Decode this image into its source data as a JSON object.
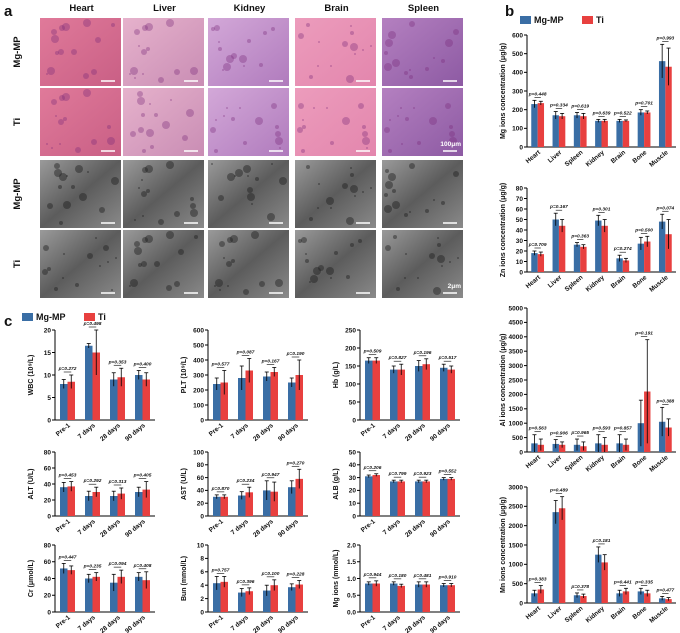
{
  "panels": {
    "a": {
      "label": "a",
      "columns": [
        "Heart",
        "Liver",
        "Kidney",
        "Brain",
        "Spleen"
      ],
      "rows": [
        "Mg-MP",
        "Ti",
        "Mg-MP",
        "Ti"
      ],
      "scale_bars": [
        "100μm",
        "2μm"
      ]
    },
    "b": {
      "label": "b"
    },
    "c": {
      "label": "c"
    }
  },
  "chart_data": [
    {
      "type": "bar",
      "y_label": "Mg ions concentration (μg/g)",
      "categories": [
        "Heart",
        "Liver",
        "Spleen",
        "Kidney",
        "Brain",
        "Bone",
        "Muscle"
      ],
      "ylim": [
        0,
        600
      ],
      "yticks": [
        0,
        100,
        200,
        300,
        400,
        500,
        600
      ],
      "series": [
        {
          "name": "Mg-MP",
          "color": "#3a6ea5",
          "values": [
            230,
            170,
            170,
            140,
            140,
            185,
            460
          ],
          "errors": [
            20,
            20,
            15,
            8,
            8,
            15,
            90
          ]
        },
        {
          "name": "Ti",
          "color": "#e8403f",
          "values": [
            235,
            165,
            165,
            140,
            140,
            185,
            430
          ],
          "errors": [
            10,
            15,
            15,
            8,
            5,
            8,
            100
          ]
        }
      ],
      "annotations": [
        "p=0.448",
        "p=0.334",
        "p=0.619",
        "p=0.639",
        "p=0.522",
        "p=0.701",
        "p=0.993"
      ]
    },
    {
      "type": "bar",
      "y_label": "Zn ions concentration (μg/g)",
      "categories": [
        "Heart",
        "Liver",
        "Spleen",
        "Kidney",
        "Brain",
        "Bone",
        "Muscle"
      ],
      "ylim": [
        0,
        80
      ],
      "yticks": [
        0,
        10,
        20,
        30,
        40,
        50,
        60,
        70,
        80
      ],
      "series": [
        {
          "color": "#3a6ea5",
          "values": [
            18,
            50,
            26,
            49,
            13,
            27,
            48
          ],
          "errors": [
            2,
            6,
            2,
            5,
            3,
            6,
            7
          ]
        },
        {
          "color": "#e8403f",
          "values": [
            17,
            44,
            24,
            44,
            11,
            29,
            36
          ],
          "errors": [
            2,
            6,
            2,
            6,
            2,
            5,
            14
          ]
        }
      ],
      "annotations": [
        "p=0.709",
        "p=0.167",
        "p=0.363",
        "p=0.301",
        "p=0.274",
        "p=0.500",
        "p=0.074"
      ]
    },
    {
      "type": "bar",
      "y_label": "Al ions concentration (μg/g)",
      "categories": [
        "Heart",
        "Liver",
        "Spleen",
        "Kidney",
        "Brain",
        "Bone",
        "Muscle"
      ],
      "ylim": [
        0,
        5000
      ],
      "yticks": [
        0,
        500,
        1000,
        1500,
        2000,
        2500,
        3000,
        3500,
        4000,
        4500,
        5000
      ],
      "series": [
        {
          "color": "#3a6ea5",
          "values": [
            300,
            280,
            250,
            300,
            300,
            1000,
            1050
          ],
          "errors": [
            300,
            150,
            200,
            300,
            300,
            800,
            500
          ]
        },
        {
          "color": "#e8403f",
          "values": [
            250,
            250,
            200,
            250,
            250,
            2100,
            850
          ],
          "errors": [
            200,
            100,
            150,
            250,
            200,
            1800,
            300
          ]
        }
      ],
      "annotations": [
        "p=0.563",
        "p=0.906",
        "p=0.965",
        "p=0.593",
        "p=0.857",
        "p=0.191",
        "p=0.388"
      ]
    },
    {
      "type": "bar",
      "y_label": "Mn ions concentration (μg/g)",
      "categories": [
        "Heart",
        "Liver",
        "Spleen",
        "Kidney",
        "Brain",
        "Bone",
        "Muscle"
      ],
      "ylim": [
        0,
        3000
      ],
      "yticks": [
        0,
        500,
        1000,
        1500,
        2000,
        2500,
        3000
      ],
      "series": [
        {
          "color": "#3a6ea5",
          "values": [
            250,
            2350,
            200,
            1250,
            250,
            300,
            120
          ],
          "errors": [
            80,
            300,
            60,
            200,
            80,
            80,
            50
          ]
        },
        {
          "color": "#e8403f",
          "values": [
            350,
            2450,
            180,
            1050,
            300,
            250,
            100
          ],
          "errors": [
            100,
            300,
            50,
            200,
            80,
            80,
            40
          ]
        }
      ],
      "annotations": [
        "p=0.383",
        "p=0.489",
        "p=0.378",
        "p=0.181",
        "p=0.441",
        "p=0.335",
        "p=0.477"
      ]
    },
    {
      "type": "bar",
      "y_label": "WBC (10⁹/L)",
      "categories": [
        "Pre-1",
        "7 days",
        "28 days",
        "90 days"
      ],
      "ylim": [
        0,
        20
      ],
      "yticks": [
        0,
        5,
        10,
        15,
        20
      ],
      "series": [
        {
          "name": "Mg-MP",
          "color": "#3a6ea5",
          "values": [
            8,
            16.5,
            9,
            10
          ],
          "errors": [
            1,
            0.5,
            1.5,
            1
          ]
        },
        {
          "name": "Ti",
          "color": "#e8403f",
          "values": [
            8.5,
            15,
            9.5,
            9
          ],
          "errors": [
            1.5,
            5,
            2,
            1.5
          ]
        }
      ],
      "annotations": [
        "p=0.272",
        "p=0.498",
        "p=0.353",
        "p=0.400"
      ]
    },
    {
      "type": "bar",
      "y_label": "PLT (10⁹/L)",
      "categories": [
        "Pre-1",
        "7 days",
        "28 days",
        "90 days"
      ],
      "ylim": [
        0,
        600
      ],
      "yticks": [
        0,
        100,
        200,
        300,
        400,
        500,
        600
      ],
      "series": [
        {
          "color": "#3a6ea5",
          "values": [
            240,
            280,
            290,
            250
          ],
          "errors": [
            40,
            80,
            30,
            30
          ]
        },
        {
          "color": "#e8403f",
          "values": [
            250,
            330,
            320,
            300
          ],
          "errors": [
            80,
            80,
            30,
            100
          ]
        }
      ],
      "annotations": [
        "p=0.577",
        "p=0.087",
        "p=0.167",
        "p=0.190"
      ]
    },
    {
      "type": "bar",
      "y_label": "Hb (g/L)",
      "categories": [
        "Pre-1",
        "7 days",
        "28 days",
        "90 days"
      ],
      "ylim": [
        0,
        250
      ],
      "yticks": [
        0,
        50,
        100,
        150,
        200,
        250
      ],
      "series": [
        {
          "color": "#3a6ea5",
          "values": [
            165,
            140,
            150,
            145
          ],
          "errors": [
            8,
            10,
            15,
            10
          ]
        },
        {
          "color": "#e8403f",
          "values": [
            165,
            140,
            155,
            140
          ],
          "errors": [
            8,
            15,
            15,
            10
          ]
        }
      ],
      "annotations": [
        "p=0.509",
        "p=0.827",
        "p=0.196",
        "p=0.517"
      ]
    },
    {
      "type": "bar",
      "y_label": "ALT (U/L)",
      "categories": [
        "Pre-1",
        "7 days",
        "28 days",
        "90 days"
      ],
      "ylim": [
        0,
        80
      ],
      "yticks": [
        0,
        20,
        40,
        60,
        80
      ],
      "series": [
        {
          "color": "#3a6ea5",
          "values": [
            36,
            25,
            25,
            30
          ],
          "errors": [
            6,
            6,
            6,
            6
          ]
        },
        {
          "color": "#e8403f",
          "values": [
            37,
            30,
            28,
            33
          ],
          "errors": [
            6,
            6,
            7,
            10
          ]
        }
      ],
      "annotations": [
        "p=0.453",
        "p=0.292",
        "p=0.313",
        "p=0.405"
      ]
    },
    {
      "type": "bar",
      "y_label": "AST (U/L)",
      "categories": [
        "Pre-1",
        "7 days",
        "28 days",
        "90 days"
      ],
      "ylim": [
        0,
        100
      ],
      "yticks": [
        0,
        20,
        40,
        60,
        80,
        100
      ],
      "series": [
        {
          "color": "#3a6ea5",
          "values": [
            30,
            32,
            40,
            45
          ],
          "errors": [
            3,
            6,
            15,
            10
          ]
        },
        {
          "color": "#e8403f",
          "values": [
            30,
            37,
            38,
            58
          ],
          "errors": [
            3,
            8,
            15,
            15
          ]
        }
      ],
      "annotations": [
        "p=0.870",
        "p=0.234",
        "p=0.947",
        "p=0.270"
      ]
    },
    {
      "type": "bar",
      "y_label": "ALB (g/L)",
      "categories": [
        "Pre-1",
        "7 days",
        "28 days",
        "90 days"
      ],
      "ylim": [
        0,
        50
      ],
      "yticks": [
        0,
        10,
        20,
        30,
        40,
        50
      ],
      "series": [
        {
          "color": "#3a6ea5",
          "values": [
            31,
            27,
            27,
            29
          ],
          "errors": [
            1,
            1,
            1,
            1
          ]
        },
        {
          "color": "#e8403f",
          "values": [
            32,
            27,
            27,
            29
          ],
          "errors": [
            1,
            1,
            1,
            1
          ]
        }
      ],
      "annotations": [
        "p=0.206",
        "p=0.799",
        "p=0.923",
        "p=0.552"
      ]
    },
    {
      "type": "bar",
      "y_label": "Cr (μmol/L)",
      "categories": [
        "Pre-1",
        "7 days",
        "28 days",
        "90 days"
      ],
      "ylim": [
        0,
        80
      ],
      "yticks": [
        0,
        20,
        40,
        60,
        80
      ],
      "series": [
        {
          "color": "#3a6ea5",
          "values": [
            52,
            40,
            35,
            42
          ],
          "errors": [
            6,
            5,
            10,
            5
          ]
        },
        {
          "color": "#e8403f",
          "values": [
            50,
            42,
            42,
            38
          ],
          "errors": [
            5,
            5,
            8,
            10
          ]
        }
      ],
      "annotations": [
        "p=0.447",
        "p=0.235",
        "p=0.094",
        "p=0.408"
      ]
    },
    {
      "type": "bar",
      "y_label": "Bun (mmol/L)",
      "categories": [
        "Pre-1",
        "7 days",
        "28 days",
        "90 days"
      ],
      "ylim": [
        0,
        10
      ],
      "yticks": [
        0,
        2,
        4,
        6,
        8,
        10
      ],
      "series": [
        {
          "color": "#3a6ea5",
          "values": [
            4.3,
            2.9,
            3.2,
            3.7
          ],
          "errors": [
            1,
            0.6,
            0.8,
            0.5
          ]
        },
        {
          "color": "#e8403f",
          "values": [
            4.5,
            3.1,
            4,
            4.1
          ],
          "errors": [
            0.8,
            0.5,
            0.8,
            0.6
          ]
        }
      ],
      "annotations": [
        "p=0.757",
        "p=0.396",
        "p=0.100",
        "p=0.228"
      ]
    },
    {
      "type": "bar",
      "y_label": "Mg ions (mmol/L)",
      "categories": [
        "Pre-1",
        "7 days",
        "28 days",
        "90 days"
      ],
      "ylim": [
        0,
        2
      ],
      "yticks": [
        {
          "value": 0,
          "label": "0.0"
        },
        0.5,
        {
          "value": 1,
          "label": "1.0"
        },
        1.5,
        {
          "value": 2,
          "label": "2.0"
        }
      ],
      "series": [
        {
          "color": "#3a6ea5",
          "values": [
            0.85,
            0.85,
            0.82,
            0.8
          ],
          "errors": [
            0.05,
            0.05,
            0.08,
            0.05
          ]
        },
        {
          "color": "#e8403f",
          "values": [
            0.85,
            0.78,
            0.82,
            0.8
          ],
          "errors": [
            0.08,
            0.05,
            0.08,
            0.05
          ]
        }
      ],
      "annotations": [
        "p=0.944",
        "p=0.180",
        "p=0.481",
        "p=0.910"
      ]
    }
  ]
}
